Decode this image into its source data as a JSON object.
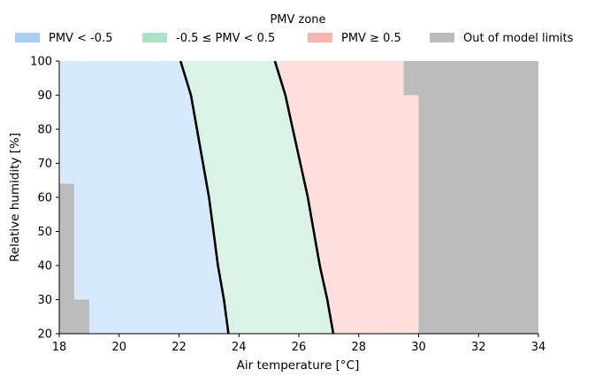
{
  "chart_data": {
    "type": "area",
    "title": "",
    "xlabel": "Air temperature [°C]",
    "ylabel": "Relative humidity [%]",
    "xlim": [
      18,
      34
    ],
    "ylim": [
      20,
      100
    ],
    "xticks": [
      18,
      20,
      22,
      24,
      26,
      28,
      30,
      32,
      34
    ],
    "yticks": [
      20,
      30,
      40,
      50,
      60,
      70,
      80,
      90,
      100
    ],
    "grid": false,
    "legend": {
      "title": "PMV zone",
      "placement": "top",
      "entries": [
        {
          "key": "cold",
          "label": "PMV < -0.5",
          "color": "#a9cdf3"
        },
        {
          "key": "neutral",
          "label": "-0.5 ≤ PMV < 0.5",
          "color": "#a8e3c7"
        },
        {
          "key": "warm",
          "label": "PMV ≥ 0.5",
          "color": "#f7b5ad"
        },
        {
          "key": "out",
          "label": "Out of model limits",
          "color": "#bcbcbc"
        }
      ]
    },
    "region_fill_colors": {
      "cold": "#d7e9fc",
      "neutral": "#d9f3e7",
      "warm": "#fedfdc",
      "out": "#bcbcbc"
    },
    "boundaries": [
      {
        "pmv": -0.5,
        "points": [
          [
            22.05,
            100
          ],
          [
            22.4,
            90
          ],
          [
            22.6,
            80
          ],
          [
            22.8,
            70
          ],
          [
            23.0,
            60
          ],
          [
            23.15,
            50
          ],
          [
            23.3,
            40
          ],
          [
            23.5,
            30
          ],
          [
            23.65,
            20
          ]
        ]
      },
      {
        "pmv": 0.5,
        "points": [
          [
            25.2,
            100
          ],
          [
            25.55,
            90
          ],
          [
            25.8,
            80
          ],
          [
            26.05,
            70
          ],
          [
            26.3,
            60
          ],
          [
            26.5,
            50
          ],
          [
            26.7,
            40
          ],
          [
            26.95,
            30
          ],
          [
            27.15,
            20
          ]
        ]
      }
    ],
    "out_of_limits_regions": [
      [
        [
          18,
          20
        ],
        [
          19,
          20
        ],
        [
          19,
          30
        ],
        [
          18.5,
          30
        ],
        [
          18.5,
          64
        ],
        [
          18,
          64
        ]
      ],
      [
        [
          30,
          20
        ],
        [
          34,
          20
        ],
        [
          34,
          100
        ],
        [
          29.5,
          100
        ],
        [
          29.5,
          90
        ],
        [
          30,
          90
        ]
      ]
    ]
  }
}
